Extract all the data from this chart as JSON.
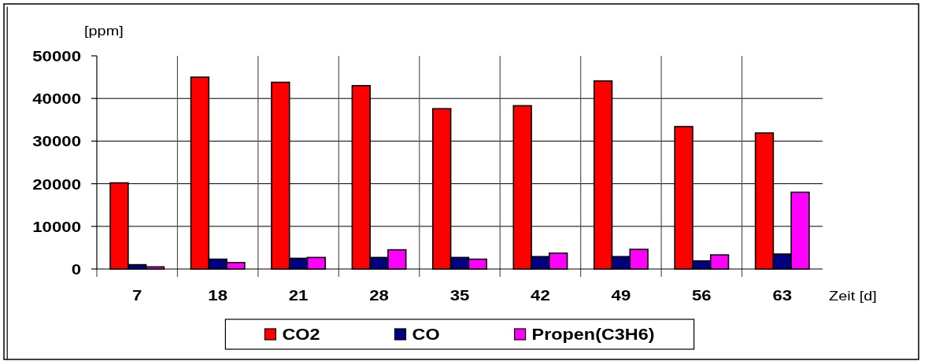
{
  "chart_data": {
    "type": "bar",
    "ylabel": "[ppm]",
    "xlabel": "Zeit [d]",
    "categories": [
      "7",
      "18",
      "21",
      "28",
      "35",
      "42",
      "49",
      "56",
      "63"
    ],
    "series": [
      {
        "name": "CO2",
        "color": "#ff0000",
        "values": [
          20200,
          45000,
          43800,
          43000,
          37600,
          38300,
          44100,
          33400,
          31900
        ]
      },
      {
        "name": "CO",
        "color": "#000080",
        "values": [
          1000,
          2300,
          2500,
          2700,
          2700,
          2900,
          2900,
          1900,
          3500
        ]
      },
      {
        "name": "Propen(C3H6)",
        "color": "#ff00ff",
        "values": [
          500,
          1500,
          2700,
          4500,
          2300,
          3700,
          4600,
          3300,
          18000
        ]
      }
    ],
    "ylim": [
      0,
      50000
    ],
    "yticks": [
      0,
      10000,
      20000,
      30000,
      40000,
      50000
    ],
    "grid": true,
    "legend": "bottom"
  }
}
